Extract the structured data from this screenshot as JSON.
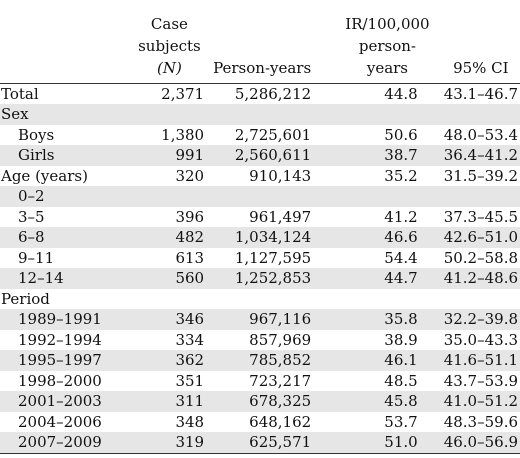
{
  "headers": {
    "case_line1": "Case",
    "case_line2": "subjects",
    "case_line3": "(N)",
    "person_years": "Person-years",
    "ir_line1": "IR/100,000",
    "ir_line2": "person-years",
    "ci": "95% CI"
  },
  "rows": [
    {
      "label": "Total",
      "cases": "2,371",
      "py": "5,286,212",
      "ir": "44.8",
      "ci": "43.1–46.7",
      "type": "main",
      "alt": false
    },
    {
      "label": "Sex",
      "cases": "",
      "py": "",
      "ir": "",
      "ci": "",
      "type": "main",
      "alt": true
    },
    {
      "label": "Boys",
      "cases": "1,380",
      "py": "2,725,601",
      "ir": "50.6",
      "ci": "48.0–53.4",
      "type": "sub",
      "alt": false
    },
    {
      "label": "Girls",
      "cases": "991",
      "py": "2,560,611",
      "ir": "38.7",
      "ci": "36.4–41.2",
      "type": "sub",
      "alt": true
    },
    {
      "label": "Age (years)",
      "cases": "320",
      "py": "910,143",
      "ir": "35.2",
      "ci": "31.5–39.2",
      "type": "main",
      "alt": false
    },
    {
      "label": "0–2",
      "cases": "",
      "py": "",
      "ir": "",
      "ci": "",
      "type": "sub",
      "alt": true
    },
    {
      "label": "3–5",
      "cases": "396",
      "py": "961,497",
      "ir": "41.2",
      "ci": "37.3–45.5",
      "type": "sub",
      "alt": false
    },
    {
      "label": "6–8",
      "cases": "482",
      "py": "1,034,124",
      "ir": "46.6",
      "ci": "42.6–51.0",
      "type": "sub",
      "alt": true
    },
    {
      "label": "9–11",
      "cases": "613",
      "py": "1,127,595",
      "ir": "54.4",
      "ci": "50.2–58.8",
      "type": "sub",
      "alt": false
    },
    {
      "label": "12–14",
      "cases": "560",
      "py": "1,252,853",
      "ir": "44.7",
      "ci": "41.2–48.6",
      "type": "sub",
      "alt": true
    },
    {
      "label": "Period",
      "cases": "",
      "py": "",
      "ir": "",
      "ci": "",
      "type": "main",
      "alt": false
    },
    {
      "label": "1989–1991",
      "cases": "346",
      "py": "967,116",
      "ir": "35.8",
      "ci": "32.2–39.8",
      "type": "sub",
      "alt": true
    },
    {
      "label": "1992–1994",
      "cases": "334",
      "py": "857,969",
      "ir": "38.9",
      "ci": "35.0–43.3",
      "type": "sub",
      "alt": false
    },
    {
      "label": "1995–1997",
      "cases": "362",
      "py": "785,852",
      "ir": "46.1",
      "ci": "41.6–51.1",
      "type": "sub",
      "alt": true
    },
    {
      "label": "1998–2000",
      "cases": "351",
      "py": "723,217",
      "ir": "48.5",
      "ci": "43.7–53.9",
      "type": "sub",
      "alt": false
    },
    {
      "label": "2001–2003",
      "cases": "311",
      "py": "678,325",
      "ir": "45.8",
      "ci": "41.0–51.2",
      "type": "sub",
      "alt": true
    },
    {
      "label": "2004–2006",
      "cases": "348",
      "py": "648,162",
      "ir": "53.7",
      "ci": "48.3–59.6",
      "type": "sub",
      "alt": false
    },
    {
      "label": "2007–2009",
      "cases": "319",
      "py": "625,571",
      "ir": "51.0",
      "ci": "46.0–56.9",
      "type": "sub",
      "alt": true
    }
  ]
}
